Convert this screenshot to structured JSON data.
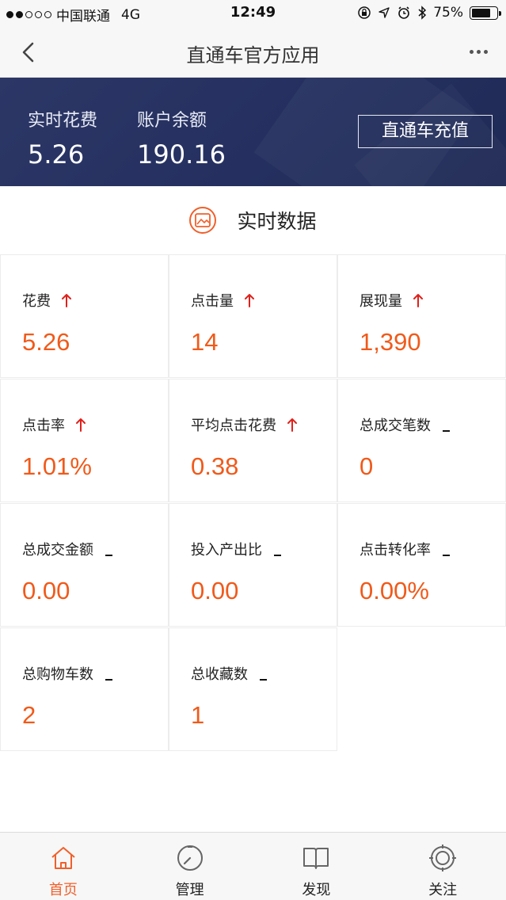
{
  "status_bar": {
    "carrier": "中国联通",
    "network": "4G",
    "time": "12:49",
    "battery": "75%",
    "battery_level": 0.75
  },
  "nav": {
    "title": "直通车官方应用"
  },
  "banner": {
    "realtime_cost_label": "实时花费",
    "realtime_cost_value": "5.26",
    "balance_label": "账户余额",
    "balance_value": "190.16",
    "recharge_label": "直通车充值"
  },
  "section": {
    "title": "实时数据"
  },
  "metrics": [
    {
      "label": "花费",
      "value": "5.26",
      "trend": "up"
    },
    {
      "label": "点击量",
      "value": "14",
      "trend": "up"
    },
    {
      "label": "展现量",
      "value": "1,390",
      "trend": "up"
    },
    {
      "label": "点击率",
      "value": "1.01%",
      "trend": "up"
    },
    {
      "label": "平均点击花费",
      "value": "0.38",
      "trend": "up"
    },
    {
      "label": "总成交笔数",
      "value": "0",
      "trend": "flat"
    },
    {
      "label": "总成交金额",
      "value": "0.00",
      "trend": "flat"
    },
    {
      "label": "投入产出比",
      "value": "0.00",
      "trend": "flat"
    },
    {
      "label": "点击转化率",
      "value": "0.00%",
      "trend": "flat"
    },
    {
      "label": "总购物车数",
      "value": "2",
      "trend": "flat"
    },
    {
      "label": "总收藏数",
      "value": "1",
      "trend": "flat"
    }
  ],
  "tabs": [
    {
      "label": "首页",
      "icon": "home-icon",
      "active": true
    },
    {
      "label": "管理",
      "icon": "dial-icon",
      "active": false
    },
    {
      "label": "发现",
      "icon": "book-icon",
      "active": false
    },
    {
      "label": "关注",
      "icon": "target-icon",
      "active": false
    }
  ],
  "colors": {
    "accent": "#f0602b",
    "value": "#f05a1a",
    "trend_up": "#e0201b",
    "banner": "#2a3563"
  }
}
